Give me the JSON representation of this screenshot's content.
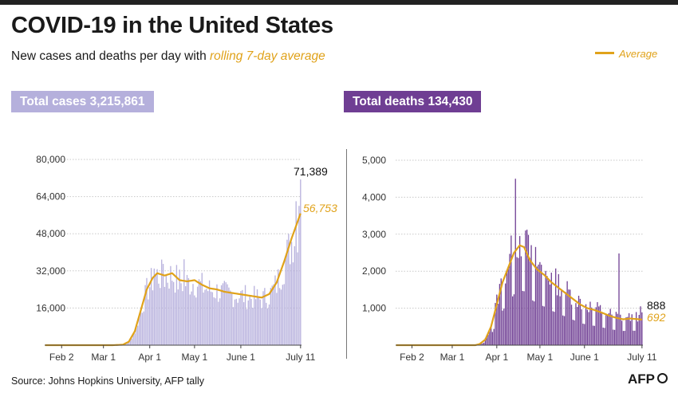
{
  "header": {
    "title": "COVID-19 in the United States",
    "subtitle_prefix": "New cases and deaths per day with",
    "subtitle_avg": "rolling 7-day average",
    "legend_label": "Average"
  },
  "badges": {
    "cases": "Total cases 3,215,861",
    "deaths": "Total deaths 134,430"
  },
  "footer": {
    "source": "Source: Johns Hopkins University, AFP tally",
    "logo": "AFP"
  },
  "colors": {
    "cases_bar": "#b9b3de",
    "deaths_bar": "#6f3e93",
    "average": "#e0a21a",
    "axis": "#444444",
    "grid": "#c8c8c8"
  },
  "chart_data": [
    {
      "type": "bar",
      "name": "cases",
      "x_tick_labels": [
        "Feb 2",
        "Mar 1",
        "Apr 1",
        "May 1",
        "June 1",
        "July 11"
      ],
      "y_ticks": [
        16000,
        32000,
        48000,
        64000,
        80000
      ],
      "y_tick_labels": [
        "16,000",
        "32,000",
        "48,000",
        "64,000",
        "80,000"
      ],
      "ylim": [
        0,
        80000
      ],
      "grid": true,
      "last_value_label": "71,389",
      "last_avg_label": "56,753",
      "key_points": [
        {
          "date": "2020-03-15",
          "daily": 1000,
          "avg": 600
        },
        {
          "date": "2020-04-04",
          "daily": 33000,
          "avg": 29000
        },
        {
          "date": "2020-04-24",
          "daily": 37000,
          "avg": 31000
        },
        {
          "date": "2020-05-16",
          "daily": 24000,
          "avg": 24000
        },
        {
          "date": "2020-06-13",
          "daily": 22000,
          "avg": 21000
        },
        {
          "date": "2020-07-11",
          "daily": 71389,
          "avg": 56753
        }
      ]
    },
    {
      "type": "bar",
      "name": "deaths",
      "x_tick_labels": [
        "Feb 2",
        "Mar 1",
        "Apr 1",
        "May 1",
        "June 1",
        "July 11"
      ],
      "y_ticks": [
        1000,
        2000,
        3000,
        4000,
        5000
      ],
      "y_tick_labels": [
        "1,000",
        "2,000",
        "3,000",
        "4,000",
        "5,000"
      ],
      "ylim": [
        0,
        5000
      ],
      "grid": true,
      "last_value_label": "888",
      "last_avg_label": "692",
      "key_points": [
        {
          "date": "2020-03-20",
          "daily": 50,
          "avg": 30
        },
        {
          "date": "2020-04-14",
          "daily": 4500,
          "avg": 2100
        },
        {
          "date": "2020-04-21",
          "daily": 2700,
          "avg": 2650
        },
        {
          "date": "2020-05-15",
          "daily": 1700,
          "avg": 1550
        },
        {
          "date": "2020-06-25",
          "daily": 2480,
          "avg": 720
        },
        {
          "date": "2020-07-11",
          "daily": 888,
          "avg": 692
        }
      ]
    }
  ]
}
